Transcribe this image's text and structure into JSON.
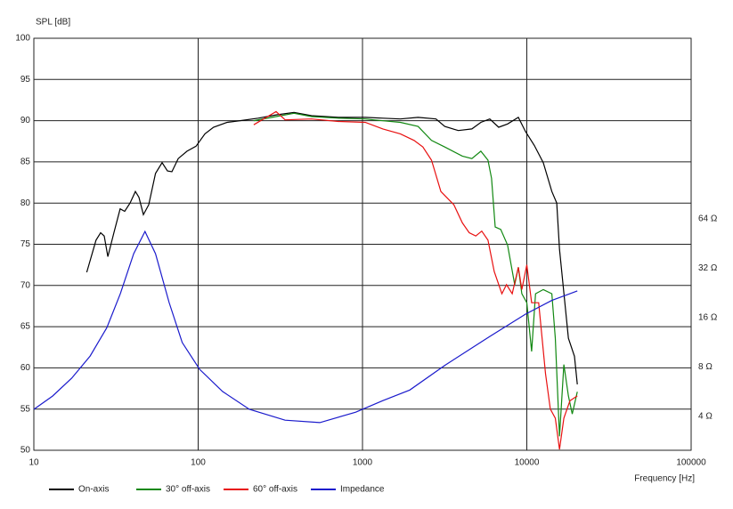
{
  "chart_data": {
    "type": "line",
    "y_label": "SPL [dB]",
    "x_label": "Frequency [Hz]",
    "xscale": "log",
    "y2scale": "log",
    "grid": true,
    "legend": "bottom",
    "xlim": [
      10,
      100000
    ],
    "xticks": [
      10,
      100,
      1000,
      10000,
      100000
    ],
    "ylim": [
      50,
      100
    ],
    "yticks": [
      50,
      55,
      60,
      65,
      70,
      75,
      80,
      85,
      90,
      95,
      100
    ],
    "y2lim": [
      2.49,
      808
    ],
    "y2ticks": [
      {
        "value": 4,
        "label": "4 Ω"
      },
      {
        "value": 8,
        "label": "8 Ω"
      },
      {
        "value": 16,
        "label": "16 Ω"
      },
      {
        "value": 32,
        "label": "32 Ω"
      },
      {
        "value": 64,
        "label": "64 Ω"
      }
    ],
    "series": [
      {
        "name": "On-axis",
        "color": "#000000",
        "x": [
          21,
          23.9,
          25.5,
          26.8,
          28.2,
          30.7,
          33.5,
          35.7,
          38.5,
          41.5,
          43.6,
          46.4,
          50,
          55,
          60.3,
          65,
          69.2,
          75.6,
          85.6,
          97,
          110,
          124,
          150,
          180,
          232,
          298,
          383,
          490,
          713,
          1040,
          1330,
          1700,
          2180,
          2800,
          3170,
          3830,
          4630,
          5250,
          5950,
          6740,
          7640,
          8880,
          9800,
          11100,
          12600,
          14200,
          15200,
          15800,
          17900,
          19500,
          20300
        ],
        "values": [
          71.6,
          75.5,
          76.4,
          76.0,
          73.5,
          76.4,
          79.3,
          79.0,
          80.0,
          81.4,
          80.7,
          78.6,
          79.8,
          83.6,
          84.9,
          83.9,
          83.8,
          85.4,
          86.3,
          86.9,
          88.4,
          89.2,
          89.8,
          90.0,
          90.3,
          90.7,
          91.0,
          90.6,
          90.4,
          90.4,
          90.3,
          90.2,
          90.4,
          90.2,
          89.3,
          88.8,
          89.0,
          89.8,
          90.2,
          89.2,
          89.6,
          90.4,
          88.7,
          87.0,
          84.9,
          81.4,
          80.0,
          74.4,
          63.6,
          61.4,
          58.0
        ]
      },
      {
        "name": "30° off-axis",
        "color": "#118811",
        "x": [
          218,
          298,
          383,
          490,
          713,
          1040,
          1170,
          1700,
          2180,
          2630,
          3170,
          4050,
          4630,
          5250,
          5800,
          6100,
          6420,
          6940,
          7640,
          8440,
          8880,
          9330,
          10000,
          10700,
          11300,
          12600,
          14200,
          14900,
          15800,
          16800,
          17900,
          18900,
          20300
        ],
        "values": [
          90.0,
          90.5,
          90.9,
          90.5,
          90.3,
          90.2,
          90.1,
          89.8,
          89.3,
          87.6,
          86.8,
          85.7,
          85.4,
          86.3,
          85.2,
          83.0,
          77.1,
          76.8,
          74.9,
          70.1,
          72.2,
          69.0,
          67.9,
          62.0,
          69.0,
          69.5,
          69.0,
          63.6,
          51.7,
          60.4,
          56.6,
          54.4,
          57.1
        ]
      },
      {
        "name": "60° off-axis",
        "color": "#e81010",
        "x": [
          218,
          298,
          338,
          490,
          713,
          1040,
          1330,
          1700,
          2060,
          2330,
          2630,
          3000,
          3600,
          4050,
          4460,
          4890,
          5320,
          5800,
          6330,
          7050,
          7520,
          8150,
          8880,
          9330,
          10000,
          10700,
          11800,
          13000,
          13900,
          14900,
          15800,
          16800,
          18300,
          20300
        ],
        "values": [
          89.5,
          91.1,
          90.1,
          90.2,
          89.9,
          89.8,
          89.0,
          88.4,
          87.6,
          86.8,
          85.2,
          81.4,
          79.8,
          77.6,
          76.4,
          76.0,
          76.6,
          75.5,
          71.7,
          69.0,
          70.1,
          69.0,
          72.2,
          69.5,
          72.5,
          67.9,
          67.9,
          59.3,
          55.0,
          53.9,
          50.1,
          53.9,
          56.0,
          56.6
        ]
      },
      {
        "name": "Impedance",
        "color": "#1a1acc",
        "axis": "y2",
        "x": [
          10,
          13,
          17,
          22,
          27.8,
          33.6,
          40.5,
          47.5,
          55,
          66.6,
          80,
          102,
          141,
          205,
          338,
          550,
          910,
          1330,
          1940,
          3170,
          5950,
          9800,
          14200,
          20300
        ],
        "values": [
          4.42,
          5.33,
          6.85,
          9.35,
          13.9,
          22.4,
          39.3,
          53.7,
          39.3,
          19.8,
          11.3,
          7.76,
          5.68,
          4.42,
          3.8,
          3.67,
          4.25,
          5.0,
          5.8,
          8.2,
          12.3,
          16.8,
          20.4,
          23.3
        ]
      }
    ]
  }
}
